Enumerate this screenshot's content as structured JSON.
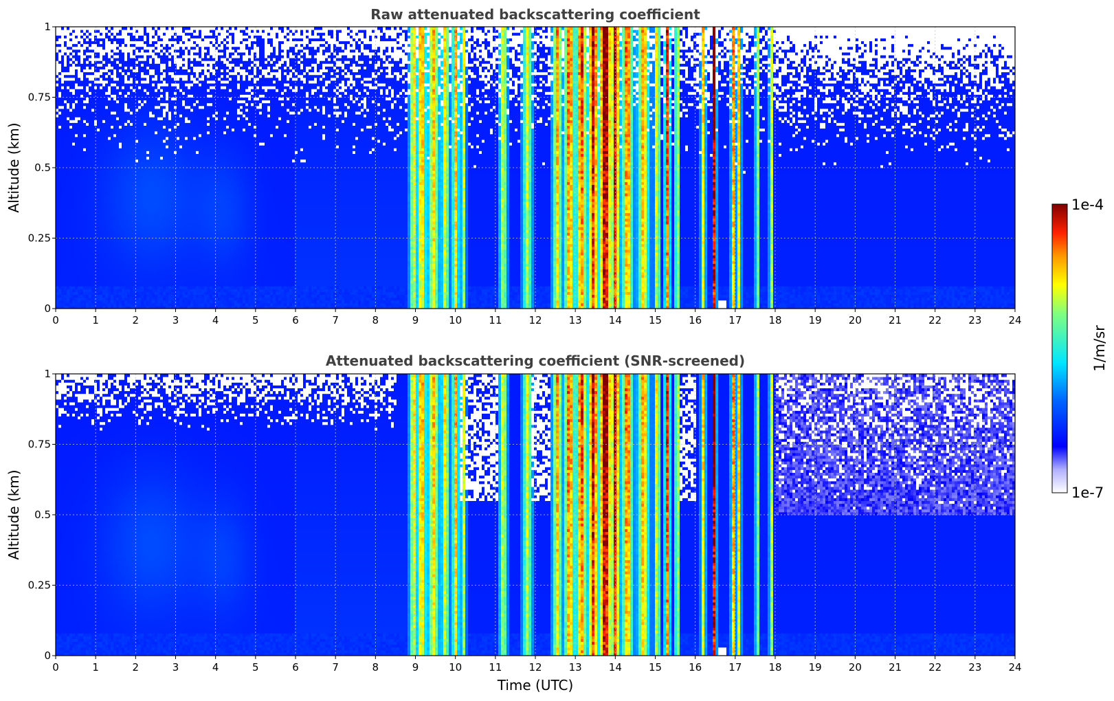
{
  "chart_data": [
    {
      "type": "heatmap",
      "title": "Raw attenuated backscattering coefficient",
      "xlabel": "",
      "ylabel": "Altitude (km)",
      "xlim": [
        0,
        24
      ],
      "ylim": [
        0,
        1
      ],
      "x_ticks": [
        "0",
        "1",
        "2",
        "3",
        "4",
        "5",
        "6",
        "7",
        "8",
        "9",
        "10",
        "11",
        "12",
        "13",
        "14",
        "15",
        "16",
        "17",
        "18",
        "19",
        "20",
        "21",
        "22",
        "23",
        "24"
      ],
      "y_ticks": [
        "0",
        "0.25",
        "0.5",
        "0.75",
        "1"
      ],
      "grid": true,
      "screened": false
    },
    {
      "type": "heatmap",
      "title": "Attenuated backscattering coefficient (SNR-screened)",
      "xlabel": "Time (UTC)",
      "ylabel": "Altitude (km)",
      "xlim": [
        0,
        24
      ],
      "ylim": [
        0,
        1
      ],
      "x_ticks": [
        "0",
        "1",
        "2",
        "3",
        "4",
        "5",
        "6",
        "7",
        "8",
        "9",
        "10",
        "11",
        "12",
        "13",
        "14",
        "15",
        "16",
        "17",
        "18",
        "19",
        "20",
        "21",
        "22",
        "23",
        "24"
      ],
      "y_ticks": [
        "0",
        "0.25",
        "0.5",
        "0.75",
        "1"
      ],
      "grid": true,
      "screened": true
    }
  ],
  "colorbar": {
    "label": "1/m/sr",
    "max_label": "1e-4",
    "min_label": "1e-7",
    "scale": "log",
    "colormap": "jet"
  },
  "features": {
    "strong_columns_utc": [
      9.1,
      9.5,
      10.0,
      12.8,
      13.3,
      13.8,
      14.4,
      15.3,
      16.5,
      17.0,
      17.9
    ],
    "peak_value_time_utc": 13.8,
    "ground_clutter_gap_utc": [
      16.55,
      16.75
    ]
  }
}
